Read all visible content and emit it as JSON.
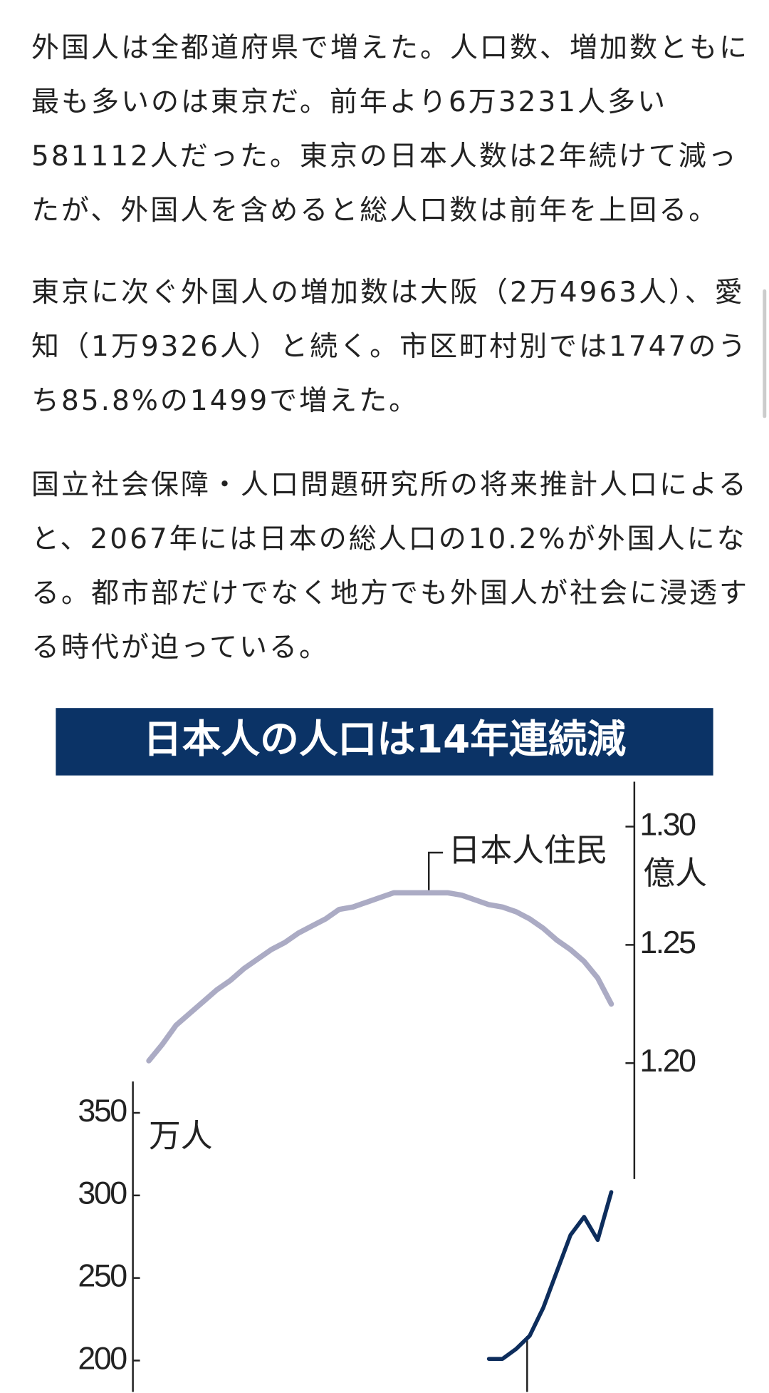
{
  "paragraphs": [
    "外国人は全都道府県で増えた。人口数、増加数ともに最も多いのは東京だ。前年より6万3231人多い581112人だった。東京の日本人数は2年続けて減ったが、外国人を含めると総人口数は前年を上回る。",
    "東京に次ぐ外国人の増加数は大阪（2万4963人）、愛知（1万9326人）と続く。市区町村別では1747のうち85.8%の1499で増えた。",
    "国立社会保障・人口問題研究所の将来推計人口によると、2067年には日本の総人口の10.2%が外国人になる。都市部だけでなく地方でも外国人が社会に浸透する時代が迫っている。"
  ],
  "chart_data": {
    "type": "line",
    "title": "日本人の人口は14年連続減",
    "categories": [
      null,
      null,
      null,
      null,
      null,
      null,
      null,
      null,
      null,
      null,
      null,
      null,
      null,
      null,
      null,
      null,
      null,
      null,
      null,
      null,
      null,
      null,
      null,
      null,
      null,
      null,
      null,
      null,
      null,
      null,
      null,
      null,
      null,
      null,
      null
    ],
    "series": [
      {
        "name": "日本人住民",
        "color": "#ababc4",
        "axis": "y2",
        "values": [
          1.201,
          1.208,
          1.216,
          1.221,
          1.226,
          1.231,
          1.235,
          1.24,
          1.244,
          1.248,
          1.251,
          1.255,
          1.258,
          1.261,
          1.265,
          1.266,
          1.268,
          1.27,
          1.272,
          1.272,
          1.272,
          1.272,
          1.272,
          1.271,
          1.269,
          1.267,
          1.266,
          1.264,
          1.261,
          1.257,
          1.252,
          1.248,
          1.243,
          1.236,
          1.225
        ]
      },
      {
        "color": "#0d2d5c",
        "values": [
          null,
          null,
          null,
          null,
          null,
          null,
          null,
          null,
          null,
          null,
          null,
          null,
          null,
          null,
          null,
          null,
          null,
          null,
          null,
          null,
          null,
          null,
          null,
          null,
          null,
          201,
          201,
          207,
          215,
          232,
          254,
          276,
          287,
          273,
          302
        ]
      }
    ],
    "ylabel": "万人",
    "ylim": [
      181,
      369
    ],
    "yticks": [
      200,
      250,
      300,
      350
    ],
    "y2label": "億人",
    "y2lim": [
      1.151,
      1.319
    ],
    "y2ticks": [
      {
        "value": 1.2,
        "label": "1.20"
      },
      1.25,
      {
        "value": 1.3,
        "label": "1.30"
      }
    ],
    "title_color": "#0b3366"
  }
}
